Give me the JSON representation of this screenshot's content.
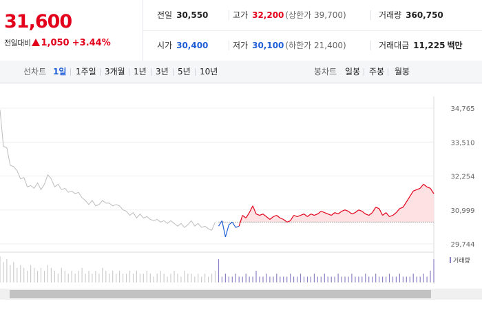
{
  "quote": {
    "price": "31,600",
    "change_label": "전일대비",
    "change_amount": "1,050",
    "change_percent": "+3.44%",
    "prev_close_label": "전일",
    "prev_close": "30,550",
    "high_label": "고가",
    "high": "32,200",
    "upper_limit": "(상한가 39,700)",
    "volume_label": "거래량",
    "volume": "360,750",
    "open_label": "시가",
    "open": "30,400",
    "low_label": "저가",
    "low": "30,100",
    "lower_limit": "(하한가 21,400)",
    "amount_label": "거래대금",
    "amount": "11,225",
    "amount_unit": "백만"
  },
  "tabs": {
    "line_title": "선차트",
    "line_periods": [
      "1일",
      "1주일",
      "3개월",
      "1년",
      "3년",
      "5년",
      "10년"
    ],
    "active_period": 0,
    "candle_title": "봉차트",
    "candle_periods": [
      "일봉",
      "주봉",
      "월봉"
    ]
  },
  "colors": {
    "up": "#e2001a",
    "down": "#1e5fd8",
    "prev_line": "#bdbdbd",
    "up_fill": "#fde1e3"
  },
  "chart_data": {
    "type": "line",
    "y_ticks": [
      "34,765",
      "33,510",
      "32,254",
      "30,999",
      "29,744"
    ],
    "ylim": [
      29744,
      34765
    ],
    "baseline": 30550,
    "volume_legend": "거래량",
    "series": [
      {
        "x": [
          0,
          1,
          2,
          3,
          4,
          5,
          6,
          7,
          8,
          9,
          10,
          11,
          12,
          13,
          14,
          15,
          16,
          17,
          18,
          19,
          20,
          21,
          22,
          23,
          24,
          25,
          26,
          27,
          28,
          29,
          30,
          31,
          32,
          33,
          34,
          35,
          36,
          37,
          38,
          39,
          40,
          41,
          42,
          43,
          44,
          45,
          46,
          47,
          48,
          49,
          50,
          51,
          52,
          53,
          54,
          55,
          56,
          57,
          58,
          59,
          60,
          61,
          62,
          63
        ],
        "values": [
          34700,
          33350,
          33300,
          32650,
          32600,
          32450,
          32150,
          32200,
          31850,
          31900,
          31800,
          32000,
          31750,
          31950,
          32300,
          32150,
          31850,
          31950,
          31750,
          31800,
          31650,
          31700,
          31600,
          31650,
          31450,
          31350,
          31200,
          31350,
          31150,
          31200,
          31350,
          31250,
          31250,
          31150,
          31200,
          31150,
          31000,
          30950,
          30800,
          30900,
          30700,
          30850,
          30700,
          30750,
          30650,
          30600,
          30650,
          30550,
          30600,
          30500,
          30600,
          30500,
          30400,
          30500,
          30350,
          30450,
          30600,
          30400,
          30500,
          30350,
          30400,
          30300,
          30250,
          30550
        ]
      },
      {
        "x": [
          64,
          65,
          66,
          67,
          68,
          69,
          70,
          71,
          72,
          73,
          74,
          75,
          76,
          77,
          78,
          79,
          80,
          81,
          82,
          83,
          84,
          85,
          86,
          87,
          88,
          89,
          90,
          91,
          92,
          93,
          94,
          95,
          96,
          97,
          98,
          99,
          100,
          101,
          102,
          103,
          104,
          105,
          106,
          107,
          108,
          109,
          110,
          111,
          112,
          113,
          114,
          115,
          116,
          117,
          118,
          119,
          120,
          121,
          122,
          123,
          124,
          125,
          126,
          127
        ],
        "values": [
          30400,
          30600,
          30000,
          30450,
          30550,
          30350,
          30400,
          30800,
          30700,
          30900,
          31150,
          30850,
          30800,
          30850,
          30750,
          30650,
          30750,
          30800,
          30700,
          30650,
          30550,
          30600,
          30800,
          30750,
          30800,
          30850,
          30750,
          30850,
          30800,
          30850,
          30950,
          30900,
          30850,
          30800,
          30900,
          30850,
          30950,
          31000,
          30950,
          30850,
          30900,
          31000,
          30950,
          30850,
          30800,
          30900,
          31100,
          31050,
          30800,
          30900,
          30750,
          30800,
          30900,
          31050,
          31100,
          31300,
          31500,
          31700,
          31750,
          31800,
          31950,
          31850,
          31800,
          31600
        ]
      }
    ],
    "volume": [
      9,
      7,
      8,
      6,
      7,
      5,
      6,
      5,
      4,
      6,
      5,
      4,
      5,
      4,
      6,
      5,
      4,
      3,
      5,
      4,
      3,
      4,
      3,
      4,
      5,
      3,
      4,
      3,
      4,
      3,
      5,
      4,
      3,
      4,
      3,
      4,
      3,
      3,
      4,
      3,
      4,
      3,
      3,
      4,
      3,
      2,
      3,
      4,
      3,
      2,
      3,
      4,
      3,
      2,
      4,
      3,
      3,
      2,
      3,
      2,
      3,
      2,
      3,
      4,
      8,
      2,
      3,
      2,
      2,
      3,
      2,
      2,
      3,
      2,
      2,
      4,
      2,
      2,
      3,
      2,
      2,
      3,
      2,
      2,
      2,
      3,
      2,
      2,
      3,
      2,
      2,
      2,
      3,
      2,
      2,
      3,
      2,
      2,
      2,
      3,
      2,
      2,
      2,
      3,
      2,
      2,
      2,
      3,
      2,
      2,
      3,
      2,
      2,
      2,
      3,
      2,
      2,
      3,
      2,
      2,
      2,
      3,
      2,
      2,
      3,
      2,
      4,
      8
    ]
  }
}
